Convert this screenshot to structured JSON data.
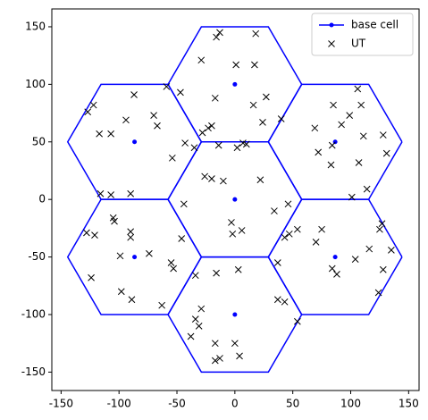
{
  "chart_data": {
    "type": "scatter",
    "xlim": [
      -158,
      159
    ],
    "ylim": [
      -166,
      165.5
    ],
    "xticks": [
      -150,
      -100,
      -50,
      0,
      50,
      100,
      150
    ],
    "yticks": [
      -150,
      -100,
      -50,
      0,
      50,
      100,
      150
    ],
    "legend": "upper right",
    "cells": [
      {
        "x": [
          57.7,
          28.9,
          -28.9,
          -57.7,
          -28.9,
          28.9,
          57.7
        ],
        "y": [
          100,
          150,
          150,
          100,
          50,
          50,
          100
        ]
      },
      {
        "x": [
          57.7,
          28.9,
          -28.9,
          -57.7,
          -28.9,
          28.9,
          57.7
        ],
        "y": [
          0,
          50,
          50,
          0,
          -50,
          -50,
          0
        ]
      },
      {
        "x": [
          57.7,
          28.9,
          -28.9,
          -57.7,
          -28.9,
          28.9,
          57.7
        ],
        "y": [
          -100,
          -50,
          -50,
          -100,
          -150,
          -150,
          -100
        ]
      },
      {
        "x": [
          -28.9,
          -57.7,
          -115.5,
          -144.3,
          -115.5,
          -57.7,
          -28.9
        ],
        "y": [
          50,
          100,
          100,
          50,
          0,
          0,
          50
        ]
      },
      {
        "x": [
          -28.9,
          -57.7,
          -115.5,
          -144.3,
          -115.5,
          -57.7,
          -28.9
        ],
        "y": [
          -50,
          0,
          0,
          -50,
          -100,
          -100,
          -50
        ]
      },
      {
        "x": [
          144.3,
          115.5,
          57.7,
          28.9,
          57.7,
          115.5,
          144.3
        ],
        "y": [
          50,
          100,
          100,
          50,
          0,
          0,
          50
        ]
      },
      {
        "x": [
          144.3,
          115.5,
          57.7,
          28.9,
          57.7,
          115.5,
          144.3
        ],
        "y": [
          -50,
          0,
          0,
          -50,
          -100,
          -100,
          -50
        ]
      }
    ],
    "series": [
      {
        "name": "base cell",
        "color": "#0000ff",
        "marker": "o",
        "x": [
          0,
          0,
          0,
          -86.6,
          -86.6,
          86.6,
          86.6
        ],
        "values": [
          100,
          0,
          -100,
          50,
          -50,
          50,
          -50
        ]
      },
      {
        "name": "UT",
        "color": "#000000",
        "marker": "x",
        "x": [
          -16,
          -13,
          18,
          -29,
          1,
          17,
          -47,
          -59,
          -17,
          27,
          16,
          24,
          -28,
          -20,
          -23,
          -127,
          -122,
          -87,
          -117,
          -107,
          -94,
          -70,
          -67,
          -43,
          -54,
          -35,
          106,
          85,
          109,
          99,
          40,
          69,
          92,
          111,
          128,
          131,
          72,
          84,
          83,
          107,
          101,
          114,
          -26,
          -20,
          -10,
          2,
          7,
          10,
          22,
          -44,
          -3,
          6,
          -2,
          34,
          46,
          43,
          47,
          54,
          -14,
          -116,
          -107,
          -90,
          -105,
          -128,
          -121,
          -104,
          -90,
          -90,
          -74,
          -99,
          -46,
          -55,
          -53,
          -34,
          -124,
          -98,
          -89,
          -63,
          75,
          70,
          84,
          88,
          104,
          116,
          127,
          125,
          135,
          128,
          124,
          37,
          37,
          43,
          54,
          -16,
          3,
          -29,
          -31,
          -38,
          -17,
          0,
          4,
          -17,
          -13,
          -34
        ],
        "values": [
          141,
          145,
          144,
          121,
          117,
          117,
          93,
          98,
          88,
          89,
          82,
          67,
          58,
          64,
          62,
          76,
          82,
          91,
          57,
          57,
          69,
          73,
          64,
          49,
          36,
          45,
          96,
          82,
          82,
          73,
          70,
          62,
          65,
          55,
          56,
          40,
          41,
          47,
          30,
          32,
          2,
          9,
          20,
          18,
          16,
          45,
          49,
          48,
          17,
          -4,
          -20,
          -27,
          -30,
          -10,
          -4,
          -33,
          -30,
          -26,
          47,
          5,
          4,
          5,
          -16,
          -29,
          -31,
          -19,
          -28,
          -33,
          -47,
          -49,
          -34,
          -55,
          -60,
          -66,
          -68,
          -80,
          -87,
          -92,
          -26,
          -37,
          -60,
          -65,
          -52,
          -43,
          -21,
          -26,
          -44,
          -61,
          -81,
          -55,
          -87,
          -89,
          -106,
          -64,
          -61,
          -95,
          -110,
          -119,
          -125,
          -125,
          -136,
          -140,
          -138,
          -104
        ]
      }
    ]
  }
}
